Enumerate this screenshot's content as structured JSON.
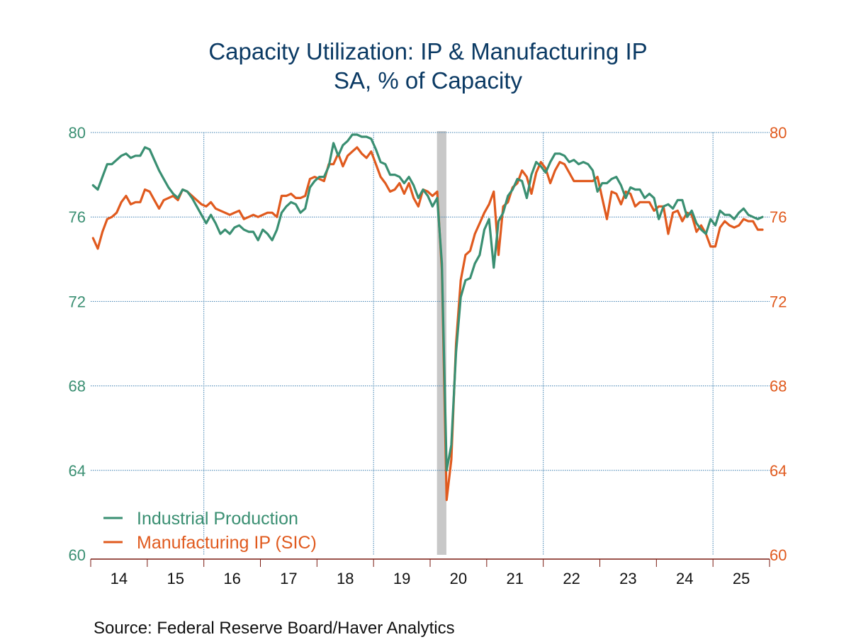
{
  "chart_data": {
    "type": "line",
    "title": "Capacity Utilization: IP & Manufacturing IP",
    "subtitle": "SA, % of Capacity",
    "source": "Source:  Federal Reserve Board/Haver Analytics",
    "x_start": "2014-01",
    "frequency": "monthly",
    "xlabel": "",
    "ylabel_left": "",
    "ylabel_right": "",
    "ylim": [
      60,
      80
    ],
    "yticks": [
      60,
      64,
      68,
      72,
      76,
      80
    ],
    "ytick_labels": [
      "60",
      "64",
      "68",
      "72",
      "76",
      "80"
    ],
    "xtick_labels": [
      "14",
      "15",
      "16",
      "17",
      "18",
      "19",
      "20",
      "21",
      "22",
      "23",
      "24",
      "25"
    ],
    "grid": true,
    "legend_position": "bottom-left",
    "shaded_periods": [
      {
        "label": "recession",
        "start": "2020-02",
        "end": "2020-04",
        "color": "#c8c8c8"
      }
    ],
    "series": [
      {
        "name": "Industrial Production",
        "axis": "left",
        "color": "#3a8f72",
        "values": [
          77.5,
          77.3,
          77.9,
          78.5,
          78.5,
          78.7,
          78.9,
          79.0,
          78.8,
          78.9,
          78.9,
          79.3,
          79.2,
          78.7,
          78.2,
          77.8,
          77.4,
          77.1,
          76.9,
          77.3,
          77.2,
          76.9,
          76.5,
          76.1,
          75.7,
          76.1,
          75.7,
          75.2,
          75.4,
          75.2,
          75.5,
          75.6,
          75.4,
          75.3,
          75.3,
          74.9,
          75.4,
          75.2,
          74.9,
          75.4,
          76.2,
          76.5,
          76.7,
          76.6,
          76.2,
          76.4,
          77.4,
          77.7,
          77.9,
          77.9,
          78.4,
          79.5,
          78.9,
          79.4,
          79.6,
          79.9,
          79.9,
          79.8,
          79.8,
          79.7,
          79.2,
          78.6,
          78.5,
          78.0,
          78.0,
          77.9,
          77.6,
          77.9,
          77.5,
          76.9,
          77.3,
          77.0,
          76.5,
          76.9,
          73.8,
          64.0,
          65.2,
          69.6,
          72.2,
          73.0,
          73.1,
          73.8,
          74.2,
          75.4,
          75.9,
          73.6,
          75.8,
          76.2,
          77.0,
          77.3,
          77.8,
          77.7,
          76.9,
          78.0,
          78.6,
          78.4,
          78.1,
          78.6,
          79.0,
          79.0,
          78.9,
          78.6,
          78.7,
          78.5,
          78.6,
          78.5,
          78.2,
          77.2,
          77.6,
          77.6,
          77.8,
          77.9,
          77.5,
          76.9,
          77.4,
          77.3,
          77.3,
          76.9,
          77.1,
          76.9,
          75.9,
          76.5,
          76.6,
          76.4,
          76.8,
          76.8,
          76.0,
          76.3,
          75.7,
          75.4,
          75.2,
          75.9,
          75.6,
          76.3,
          76.1,
          76.1,
          75.9,
          76.2,
          76.4,
          76.1,
          76.0,
          75.9,
          76.0
        ]
      },
      {
        "name": "Manufacturing IP (SIC)",
        "axis": "right",
        "color": "#e05a1e",
        "values": [
          75.0,
          74.5,
          75.3,
          75.9,
          76.0,
          76.2,
          76.7,
          77.0,
          76.6,
          76.7,
          76.7,
          77.3,
          77.2,
          76.8,
          76.4,
          76.8,
          76.9,
          77.0,
          76.8,
          77.3,
          77.2,
          77.0,
          76.8,
          76.6,
          76.5,
          76.7,
          76.4,
          76.3,
          76.2,
          76.1,
          76.2,
          76.3,
          75.9,
          76.0,
          76.1,
          76.0,
          76.1,
          76.2,
          76.2,
          76.0,
          77.0,
          77.0,
          77.1,
          76.9,
          76.9,
          77.0,
          77.8,
          77.9,
          77.8,
          77.7,
          78.5,
          78.5,
          79.0,
          78.4,
          78.9,
          79.1,
          79.3,
          79.0,
          78.8,
          79.1,
          78.5,
          77.9,
          77.6,
          77.2,
          77.3,
          77.6,
          77.1,
          77.6,
          76.9,
          76.5,
          77.3,
          77.2,
          77.0,
          77.2,
          73.5,
          62.6,
          64.5,
          70.0,
          73.0,
          74.2,
          74.4,
          75.2,
          75.7,
          76.2,
          76.6,
          77.2,
          74.2,
          76.5,
          76.7,
          77.4,
          77.6,
          78.2,
          77.9,
          77.1,
          78.1,
          78.6,
          78.3,
          77.6,
          78.2,
          78.6,
          78.5,
          78.1,
          77.7,
          77.7,
          77.7,
          77.7,
          77.7,
          77.9,
          76.9,
          75.9,
          77.2,
          77.1,
          76.6,
          77.2,
          77.1,
          76.5,
          76.7,
          76.7,
          76.7,
          76.3,
          76.5,
          76.5,
          75.2,
          76.2,
          76.3,
          75.8,
          76.2,
          76.1,
          75.3,
          75.6,
          75.2,
          74.6,
          74.6,
          75.5,
          75.8,
          75.6,
          75.5,
          75.6,
          75.9,
          75.8,
          75.8,
          75.4,
          75.4
        ]
      }
    ]
  },
  "colors": {
    "title": "#0b3a64",
    "left_axis": "#3a8f72",
    "right_axis": "#e05a1e",
    "grid": "#3d7fb0",
    "axis_line": "#7a1a10",
    "recession": "#c8c8c8"
  }
}
